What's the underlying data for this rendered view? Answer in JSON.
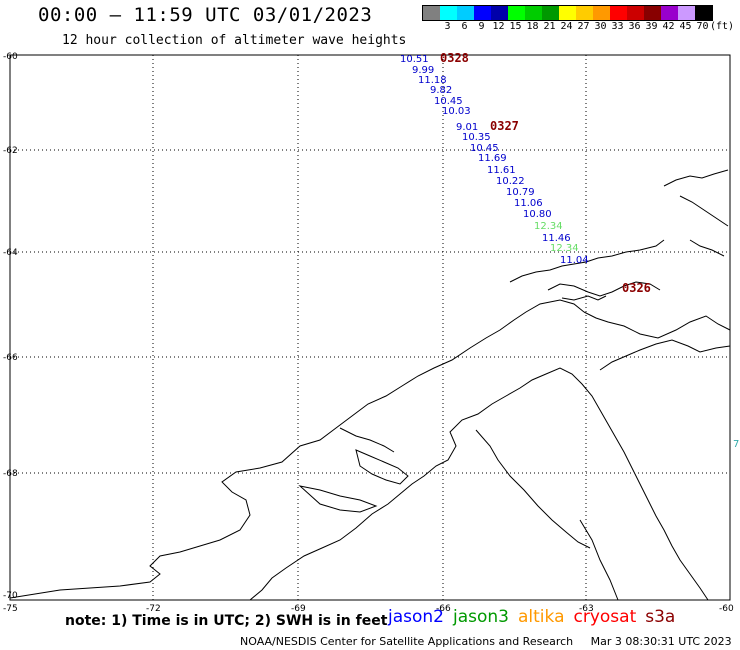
{
  "header": {
    "title": "00:00 – 11:59 UTC 03/01/2023",
    "subtitle": "12 hour collection of altimeter wave heights"
  },
  "legend": {
    "unit": "(ft)",
    "stops": [
      {
        "label": "",
        "color": "#808080"
      },
      {
        "label": "3",
        "color": "#00ffff"
      },
      {
        "label": "6",
        "color": "#00ccff"
      },
      {
        "label": "9",
        "color": "#0000ff"
      },
      {
        "label": "12",
        "color": "#0000aa"
      },
      {
        "label": "15",
        "color": "#00ff00"
      },
      {
        "label": "18",
        "color": "#00cc00"
      },
      {
        "label": "21",
        "color": "#009900"
      },
      {
        "label": "24",
        "color": "#ffff00"
      },
      {
        "label": "27",
        "color": "#ffcc00"
      },
      {
        "label": "30",
        "color": "#ff9900"
      },
      {
        "label": "33",
        "color": "#ff0000"
      },
      {
        "label": "36",
        "color": "#cc0000"
      },
      {
        "label": "39",
        "color": "#880000"
      },
      {
        "label": "42",
        "color": "#9900cc"
      },
      {
        "label": "45",
        "color": "#cc99ff"
      },
      {
        "label": "70",
        "color": "#000000"
      }
    ]
  },
  "map": {
    "lat_labels": [
      "-60",
      "-62",
      "-64",
      "-66",
      "-68",
      "-70"
    ],
    "lon_labels": [
      "-75",
      "-72",
      "-69",
      "-66",
      "-63",
      "-60"
    ],
    "passes": [
      {
        "time": "0328",
        "color": "#8b0000"
      },
      {
        "time": "0327",
        "color": "#8b0000"
      },
      {
        "time": "0326",
        "color": "#8b0000"
      }
    ],
    "wave_heights": [
      {
        "value": "10.51",
        "color": "#0000cc"
      },
      {
        "value": "9.99",
        "color": "#0000cc"
      },
      {
        "value": "11.18",
        "color": "#0000cc"
      },
      {
        "value": "9.82",
        "color": "#0000cc"
      },
      {
        "value": "10.45",
        "color": "#0000cc"
      },
      {
        "value": "10.03",
        "color": "#0000cc"
      },
      {
        "value": "9.01",
        "color": "#0000cc"
      },
      {
        "value": "10.35",
        "color": "#0000cc"
      },
      {
        "value": "10.45",
        "color": "#0000cc"
      },
      {
        "value": "11.69",
        "color": "#0000cc"
      },
      {
        "value": "11.61",
        "color": "#0000cc"
      },
      {
        "value": "10.22",
        "color": "#0000cc"
      },
      {
        "value": "10.79",
        "color": "#0000cc"
      },
      {
        "value": "11.06",
        "color": "#0000cc"
      },
      {
        "value": "10.80",
        "color": "#0000cc"
      },
      {
        "value": "12.34",
        "color": "#66dd66"
      },
      {
        "value": "11.46",
        "color": "#0000cc"
      },
      {
        "value": "12.34",
        "color": "#66dd66"
      },
      {
        "value": "11.04",
        "color": "#0000cc"
      },
      {
        "value": "7",
        "color": "#33aaaa"
      }
    ]
  },
  "footer": {
    "note": "note: 1) Time is in UTC; 2) SWH is in feet",
    "satellites": [
      {
        "name": "jason2",
        "color": "#0000ff"
      },
      {
        "name": "jason3",
        "color": "#009900"
      },
      {
        "name": "altika",
        "color": "#ff9900"
      },
      {
        "name": "cryosat",
        "color": "#ff0000"
      },
      {
        "name": "s3a",
        "color": "#8b0000"
      }
    ],
    "credit": "NOAA/NESDIS Center for Satellite Applications and Research",
    "timestamp": "Mar  3 08:30:31 UTC 2023"
  }
}
